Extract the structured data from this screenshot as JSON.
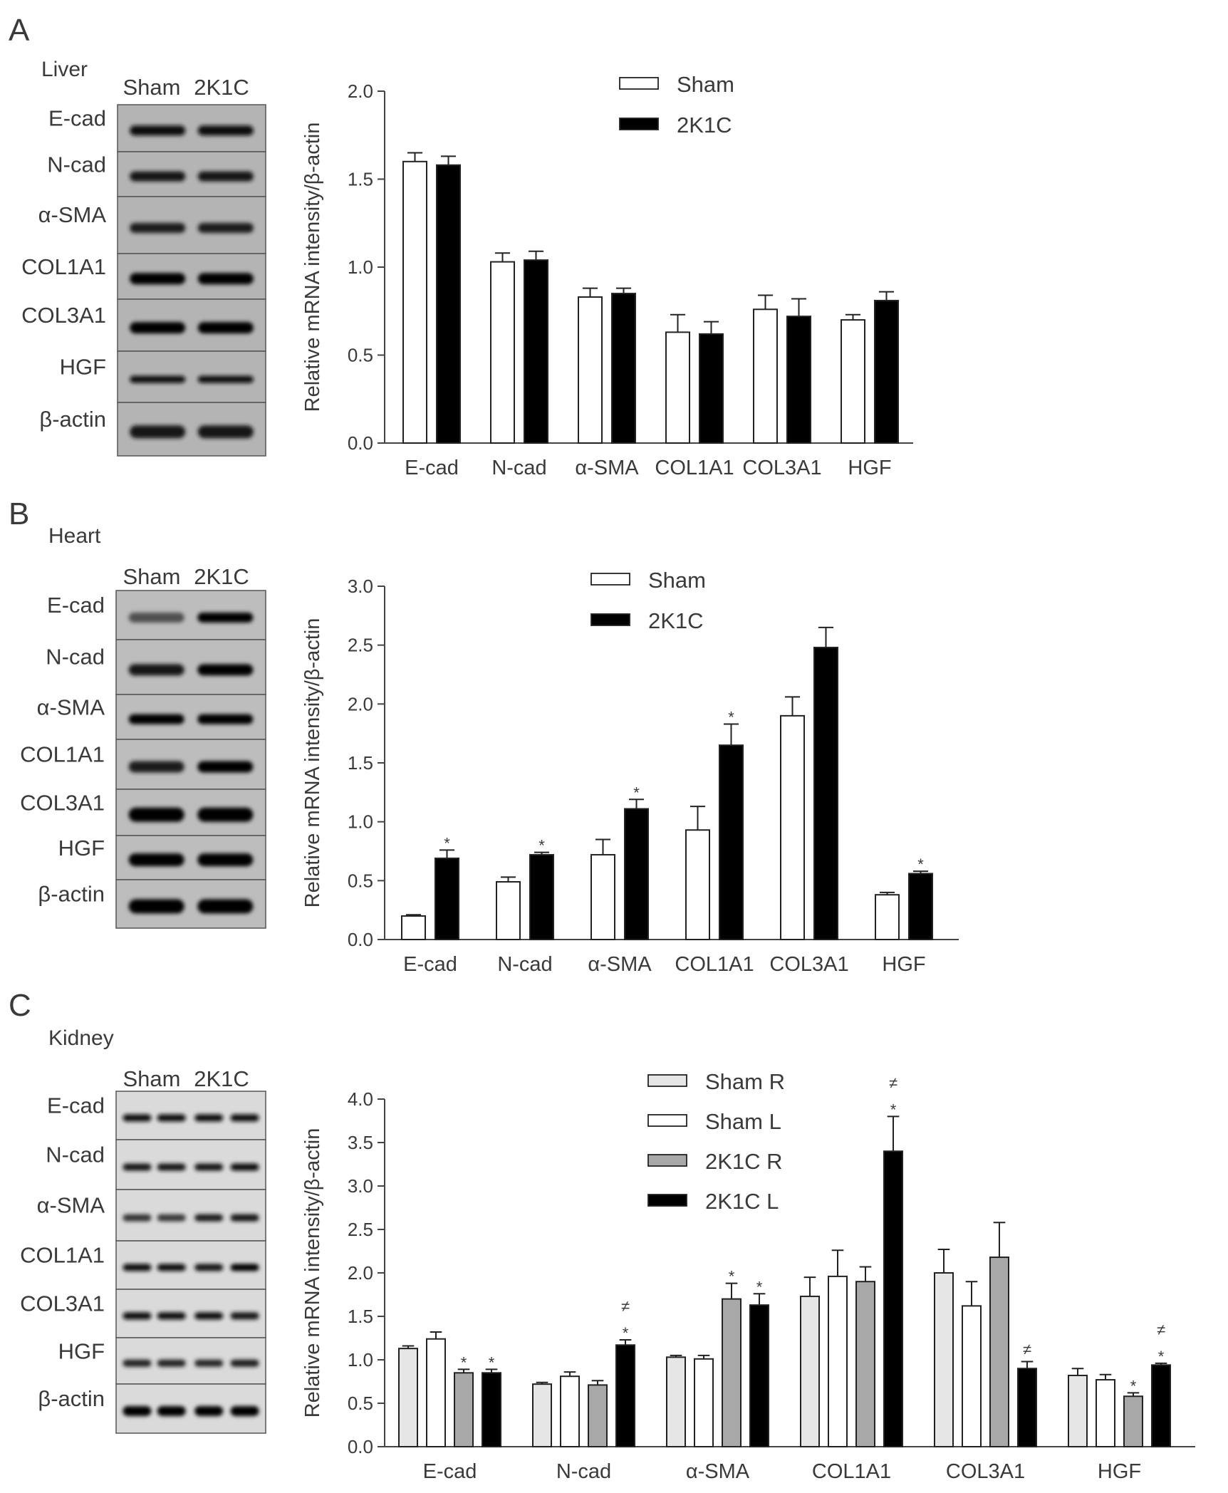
{
  "panels": [
    {
      "letter": "A",
      "tissue": "Liver",
      "gel": {
        "lanes": [
          "Sham",
          "2K1C"
        ],
        "genes": [
          "E-cad",
          "N-cad",
          "α-SMA",
          "COL1A1",
          "COL3A1",
          "HGF",
          "β-actin"
        ]
      }
    },
    {
      "letter": "B",
      "tissue": "Heart",
      "gel": {
        "lanes": [
          "Sham",
          "2K1C"
        ],
        "genes": [
          "E-cad",
          "N-cad",
          "α-SMA",
          "COL1A1",
          "COL3A1",
          "HGF",
          "β-actin"
        ]
      }
    },
    {
      "letter": "C",
      "tissue": "Kidney",
      "gel": {
        "lanes": [
          "Sham",
          "2K1C"
        ],
        "genes": [
          "E-cad",
          "N-cad",
          "α-SMA",
          "COL1A1",
          "COL3A1",
          "HGF",
          "β-actin"
        ]
      }
    }
  ],
  "chart_data": [
    {
      "type": "bar",
      "ylabel": "Relative mRNA intensity/β-actin",
      "xlabel": "",
      "ylim": [
        0,
        2.0
      ],
      "yticks": [
        "0.0",
        "0.5",
        "1.0",
        "1.5",
        "2.0"
      ],
      "categories": [
        "E-cad",
        "N-cad",
        "α-SMA",
        "COL1A1",
        "COL3A1",
        "HGF"
      ],
      "legend_position": "top-center",
      "series": [
        {
          "name": "Sham",
          "color": "#ffffff",
          "values": [
            1.6,
            1.03,
            0.83,
            0.63,
            0.76,
            0.7
          ],
          "errors": [
            0.05,
            0.05,
            0.05,
            0.1,
            0.08,
            0.03
          ],
          "marks": [
            "",
            "",
            "",
            "",
            "",
            ""
          ]
        },
        {
          "name": "2K1C",
          "color": "#000000",
          "values": [
            1.58,
            1.04,
            0.85,
            0.62,
            0.72,
            0.81
          ],
          "errors": [
            0.05,
            0.05,
            0.03,
            0.07,
            0.1,
            0.05
          ],
          "marks": [
            "",
            "",
            "",
            "",
            "",
            ""
          ]
        }
      ]
    },
    {
      "type": "bar",
      "ylabel": "Relative mRNA intensity/β-actin",
      "xlabel": "",
      "ylim": [
        0,
        3.0
      ],
      "yticks": [
        "0.0",
        "0.5",
        "1.0",
        "1.5",
        "2.0",
        "2.5",
        "3.0"
      ],
      "categories": [
        "E-cad",
        "N-cad",
        "α-SMA",
        "COL1A1",
        "COL3A1",
        "HGF"
      ],
      "legend_position": "top-center",
      "series": [
        {
          "name": "Sham",
          "color": "#ffffff",
          "values": [
            0.2,
            0.49,
            0.72,
            0.93,
            1.9,
            0.38
          ],
          "errors": [
            0.01,
            0.04,
            0.13,
            0.2,
            0.16,
            0.02
          ],
          "marks": [
            "",
            "",
            "",
            "",
            "",
            ""
          ]
        },
        {
          "name": "2K1C",
          "color": "#000000",
          "values": [
            0.69,
            0.72,
            1.11,
            1.65,
            2.48,
            0.56
          ],
          "errors": [
            0.07,
            0.02,
            0.08,
            0.18,
            0.17,
            0.02
          ],
          "marks": [
            "*",
            "*",
            "*",
            "*",
            "",
            "*"
          ]
        }
      ]
    },
    {
      "type": "bar",
      "ylabel": "Relative mRNA intensity/β-actin",
      "xlabel": "",
      "ylim": [
        0,
        4.0
      ],
      "yticks": [
        "0.0",
        "0.5",
        "1.0",
        "1.5",
        "2.0",
        "2.5",
        "3.0",
        "3.5",
        "4.0"
      ],
      "categories": [
        "E-cad",
        "N-cad",
        "α-SMA",
        "COL1A1",
        "COL3A1",
        "HGF"
      ],
      "legend_position": "top-center",
      "series": [
        {
          "name": "Sham R",
          "color": "#e6e6e6",
          "values": [
            1.13,
            0.72,
            1.03,
            1.73,
            2.0,
            0.82
          ],
          "errors": [
            0.03,
            0.02,
            0.02,
            0.22,
            0.27,
            0.08
          ],
          "marks": [
            "",
            "",
            "",
            "",
            "",
            ""
          ]
        },
        {
          "name": "Sham L",
          "color": "#ffffff",
          "values": [
            1.24,
            0.81,
            1.01,
            1.96,
            1.62,
            0.77
          ],
          "errors": [
            0.08,
            0.05,
            0.04,
            0.3,
            0.28,
            0.06
          ],
          "marks": [
            "",
            "",
            "",
            "",
            "",
            ""
          ]
        },
        {
          "name": "2K1C R",
          "color": "#a8a8a8",
          "values": [
            0.85,
            0.71,
            1.7,
            1.9,
            2.18,
            0.58
          ],
          "errors": [
            0.04,
            0.05,
            0.18,
            0.17,
            0.4,
            0.04
          ],
          "marks": [
            "*",
            "",
            "*",
            "",
            "",
            "*"
          ]
        },
        {
          "name": "2K1C L",
          "color": "#000000",
          "values": [
            0.85,
            1.17,
            1.63,
            3.4,
            0.9,
            0.94
          ],
          "errors": [
            0.04,
            0.06,
            0.13,
            0.4,
            0.08,
            0.02
          ],
          "marks": [
            "*",
            "≠\n*",
            "*",
            "≠\n*",
            "≠",
            "≠\n*"
          ]
        }
      ]
    }
  ]
}
